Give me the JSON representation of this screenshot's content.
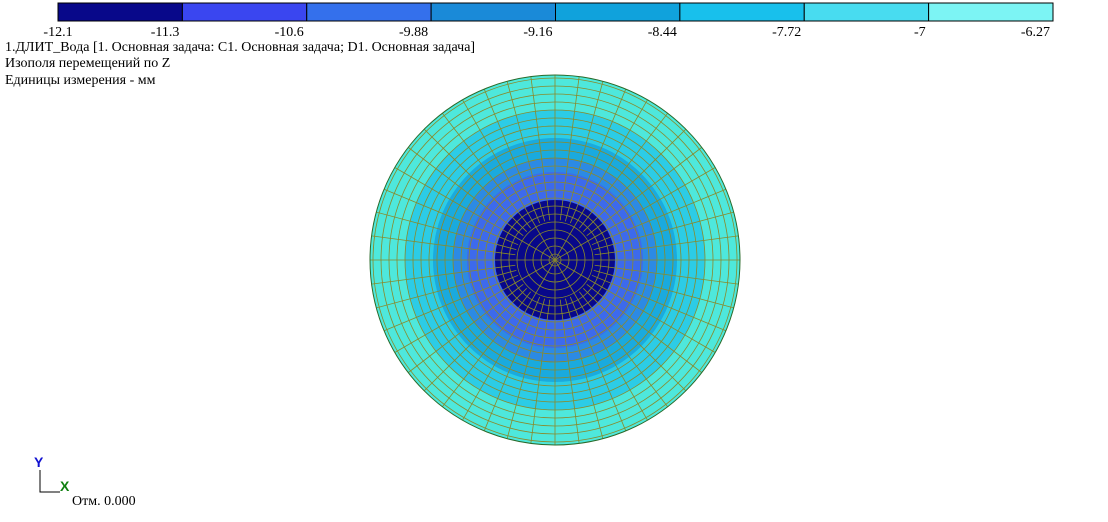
{
  "legend": {
    "colors": [
      "#08088a",
      "#3a46f0",
      "#3470ec",
      "#1a8ad8",
      "#10a2dc",
      "#18c0ec",
      "#48dcf0",
      "#7cf4f4"
    ],
    "labels": [
      "-12.1",
      "-11.3",
      "-10.6",
      "-9.88",
      "-9.16",
      "-8.44",
      "-7.72",
      "-7",
      "-6.27"
    ]
  },
  "header": {
    "title": "1.ДЛИТ_Вода [1. Основная задача: C1. Основная задача; D1. Основная задача]",
    "subtitle": "Изополя  перемещений по Z",
    "units": "Единицы измерения - мм"
  },
  "axes": {
    "y": "Y",
    "x": "X",
    "elevation": "Отм. 0.000"
  }
}
